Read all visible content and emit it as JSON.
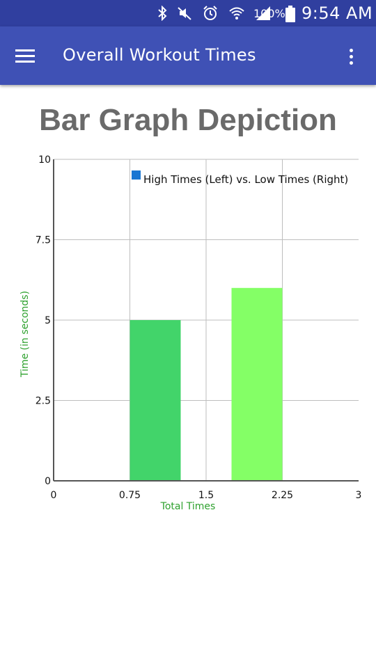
{
  "status_bar": {
    "battery_percent": "100%",
    "time": "9:54 AM",
    "icons": [
      "bluetooth-icon",
      "mute-icon",
      "alarm-icon",
      "wifi-icon",
      "signal-icon",
      "battery-icon"
    ]
  },
  "app_bar": {
    "title": "Overall Workout Times",
    "menu_icon": "hamburger-menu-icon",
    "overflow_icon": "more-vert-icon"
  },
  "page": {
    "heading": "Bar Graph Depiction"
  },
  "chart_data": {
    "type": "bar",
    "title": "",
    "xlabel": "Total Times",
    "ylabel": "Time (in seconds)",
    "legend": {
      "label": "High Times (Left) vs. Low Times (Right)",
      "placement": "top-right",
      "color": "#1976d2"
    },
    "xlim": [
      0,
      3
    ],
    "ylim": [
      0,
      10
    ],
    "x_ticks": [
      "0",
      "0.75",
      "1.5",
      "2.25",
      "3"
    ],
    "y_ticks": [
      "0",
      "2.5",
      "5",
      "7.5",
      "10"
    ],
    "bars": [
      {
        "x_start": 0.75,
        "x_end": 1.25,
        "value": 5,
        "color": "#42d46a"
      },
      {
        "x_start": 1.75,
        "x_end": 2.25,
        "value": 6,
        "color": "#84ff66"
      }
    ],
    "grid": true,
    "axis_label_color": "#2ea12e"
  }
}
